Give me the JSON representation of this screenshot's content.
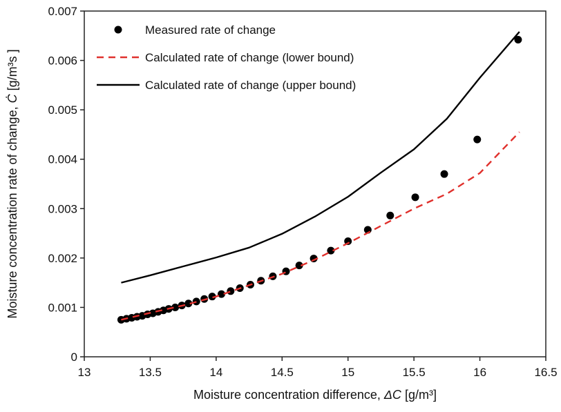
{
  "chart_data": {
    "type": "line",
    "title": "",
    "xlabel": "Moisture concentration difference, ",
    "xlabel_symbol": "ΔC",
    "xlabel_unit": " [g/m³]",
    "ylabel": "Moisture concentration rate of change, ",
    "ylabel_symbol": "Ċ",
    "ylabel_unit": " [g/m³s ]",
    "xlim": [
      13,
      16.5
    ],
    "ylim": [
      0,
      0.007
    ],
    "x_ticks": [
      13,
      13.5,
      14,
      14.5,
      15,
      15.5,
      16,
      16.5
    ],
    "x_tick_labels": [
      "13",
      "13.5",
      "14",
      "14.5",
      "15",
      "15.5",
      "16",
      "16.5"
    ],
    "y_ticks": [
      0,
      0.001,
      0.002,
      0.003,
      0.004,
      0.005,
      0.006,
      0.007
    ],
    "y_tick_labels": [
      "0",
      "0.001",
      "0.002",
      "0.003",
      "0.004",
      "0.005",
      "0.006",
      "0.007"
    ],
    "grid": false,
    "legend_position": "top-left",
    "series": [
      {
        "name": "Measured rate of change",
        "style": "markers",
        "color": "#000000",
        "x": [
          13.28,
          13.32,
          13.36,
          13.4,
          13.44,
          13.48,
          13.52,
          13.56,
          13.6,
          13.64,
          13.69,
          13.74,
          13.79,
          13.85,
          13.91,
          13.97,
          14.04,
          14.11,
          14.18,
          14.26,
          14.34,
          14.43,
          14.53,
          14.63,
          14.74,
          14.87,
          15.0,
          15.15,
          15.32,
          15.51,
          15.73,
          15.98,
          16.29
        ],
        "y": [
          0.00075,
          0.00077,
          0.00079,
          0.00081,
          0.00083,
          0.00086,
          0.00088,
          0.00091,
          0.00094,
          0.00097,
          0.001,
          0.00104,
          0.00108,
          0.00112,
          0.00117,
          0.00122,
          0.00127,
          0.00133,
          0.00139,
          0.00146,
          0.00154,
          0.00163,
          0.00173,
          0.00185,
          0.00199,
          0.00215,
          0.00234,
          0.00257,
          0.00286,
          0.00323,
          0.0037,
          0.0044,
          0.00642
        ]
      },
      {
        "name": "Calculated rate of change (lower bound)",
        "style": "dashed",
        "color": "#e0302c",
        "x": [
          13.28,
          13.5,
          13.75,
          14.0,
          14.25,
          14.5,
          14.75,
          15.0,
          15.25,
          15.5,
          15.75,
          16.0,
          16.3
        ],
        "y": [
          0.00075,
          0.00089,
          0.00104,
          0.00122,
          0.00145,
          0.00168,
          0.00197,
          0.0023,
          0.00265,
          0.003,
          0.0033,
          0.00372,
          0.00455
        ]
      },
      {
        "name": "Calculated rate of change (upper bound)",
        "style": "solid",
        "color": "#000000",
        "x": [
          13.28,
          13.5,
          13.75,
          14.0,
          14.25,
          14.5,
          14.75,
          15.0,
          15.25,
          15.5,
          15.75,
          16.0,
          16.3
        ],
        "y": [
          0.0015,
          0.00165,
          0.00183,
          0.00201,
          0.00221,
          0.00249,
          0.00284,
          0.00324,
          0.00373,
          0.0042,
          0.00482,
          0.00565,
          0.00658
        ]
      }
    ]
  }
}
